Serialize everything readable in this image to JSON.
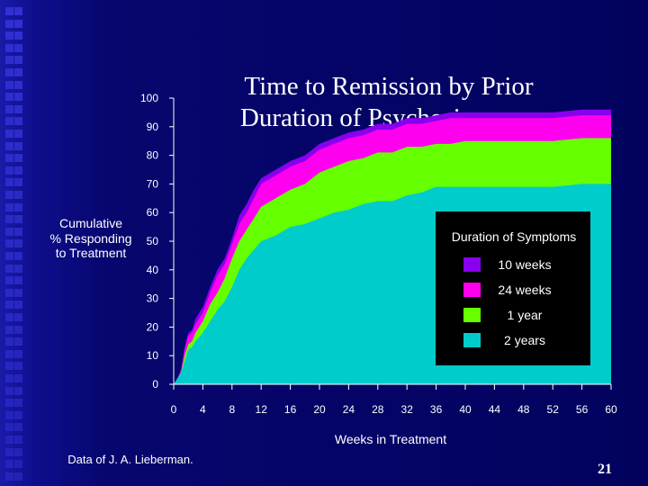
{
  "chart_data": {
    "type": "area",
    "title_lines": [
      "Time to Remission by Prior",
      "Duration of Psychosis"
    ],
    "ylabel_lines": [
      "Cumulative",
      "% Responding",
      "to Treatment"
    ],
    "xlabel": "Weeks in Treatment",
    "xlim": [
      0,
      60
    ],
    "ylim": [
      0,
      100
    ],
    "x_ticks": [
      0,
      4,
      8,
      12,
      16,
      20,
      24,
      28,
      32,
      36,
      40,
      44,
      48,
      52,
      56,
      60
    ],
    "y_ticks": [
      0,
      10,
      20,
      30,
      40,
      50,
      60,
      70,
      80,
      90,
      100
    ],
    "cumulative": true,
    "legend": {
      "title": "Duration of Symptoms",
      "placement": "right"
    },
    "series": [
      {
        "name": "10 weeks",
        "color": "#8800ee",
        "x": [
          0,
          0.5,
          1,
          1.5,
          2,
          2.5,
          3,
          4,
          5,
          6,
          7,
          8,
          9,
          10,
          11,
          12,
          14,
          16,
          18,
          20,
          22,
          24,
          26,
          28,
          30,
          32,
          34,
          36,
          38,
          40,
          44,
          48,
          52,
          56,
          60
        ],
        "y": [
          0,
          2,
          5,
          13,
          18,
          19,
          23,
          27,
          34,
          40,
          44,
          51,
          59,
          63,
          68,
          72,
          75,
          78,
          80,
          84,
          86,
          88,
          89,
          91,
          91,
          93,
          93,
          94,
          95,
          95,
          95,
          95,
          95,
          96,
          96
        ]
      },
      {
        "name": "24 weeks",
        "color": "#ff00ee",
        "x": [
          0,
          0.5,
          1,
          1.5,
          2,
          2.5,
          3,
          4,
          5,
          6,
          7,
          8,
          9,
          10,
          11,
          12,
          14,
          16,
          18,
          20,
          22,
          24,
          26,
          28,
          30,
          32,
          34,
          36,
          38,
          40,
          44,
          48,
          52,
          56,
          60
        ],
        "y": [
          0,
          2,
          5,
          12,
          17,
          18,
          21,
          25,
          32,
          38,
          42,
          49,
          56,
          60,
          65,
          70,
          73,
          76,
          78,
          82,
          84,
          86,
          87,
          89,
          89,
          91,
          91,
          92,
          93,
          93,
          93,
          93,
          93,
          94,
          94
        ]
      },
      {
        "name": "1 year",
        "color": "#66ff00",
        "x": [
          0,
          0.5,
          1,
          1.5,
          2,
          2.5,
          3,
          4,
          5,
          6,
          7,
          8,
          9,
          10,
          11,
          12,
          14,
          16,
          18,
          20,
          22,
          24,
          26,
          28,
          30,
          32,
          34,
          36,
          38,
          40,
          44,
          48,
          52,
          56,
          60
        ],
        "y": [
          0,
          2,
          4,
          10,
          14,
          15,
          18,
          22,
          28,
          32,
          37,
          44,
          50,
          54,
          58,
          62,
          65,
          68,
          70,
          74,
          76,
          78,
          79,
          81,
          81,
          83,
          83,
          84,
          84,
          85,
          85,
          85,
          85,
          86,
          86
        ]
      },
      {
        "name": "2 years",
        "color": "#00cccc",
        "x": [
          0,
          0.5,
          1,
          1.5,
          2,
          2.5,
          3,
          4,
          5,
          6,
          7,
          8,
          9,
          10,
          11,
          12,
          14,
          16,
          18,
          20,
          22,
          24,
          26,
          28,
          30,
          32,
          34,
          36,
          38,
          40,
          44,
          48,
          52,
          56,
          60
        ],
        "y": [
          0,
          2,
          4,
          8,
          12,
          13,
          15,
          18,
          22,
          26,
          29,
          34,
          40,
          44,
          47,
          50,
          52,
          55,
          56,
          58,
          60,
          61,
          63,
          64,
          64,
          66,
          67,
          69,
          69,
          69,
          69,
          69,
          69,
          70,
          70
        ]
      }
    ]
  },
  "footer": {
    "source": "Data of J. A. Lieberman.",
    "page_number": "21"
  }
}
